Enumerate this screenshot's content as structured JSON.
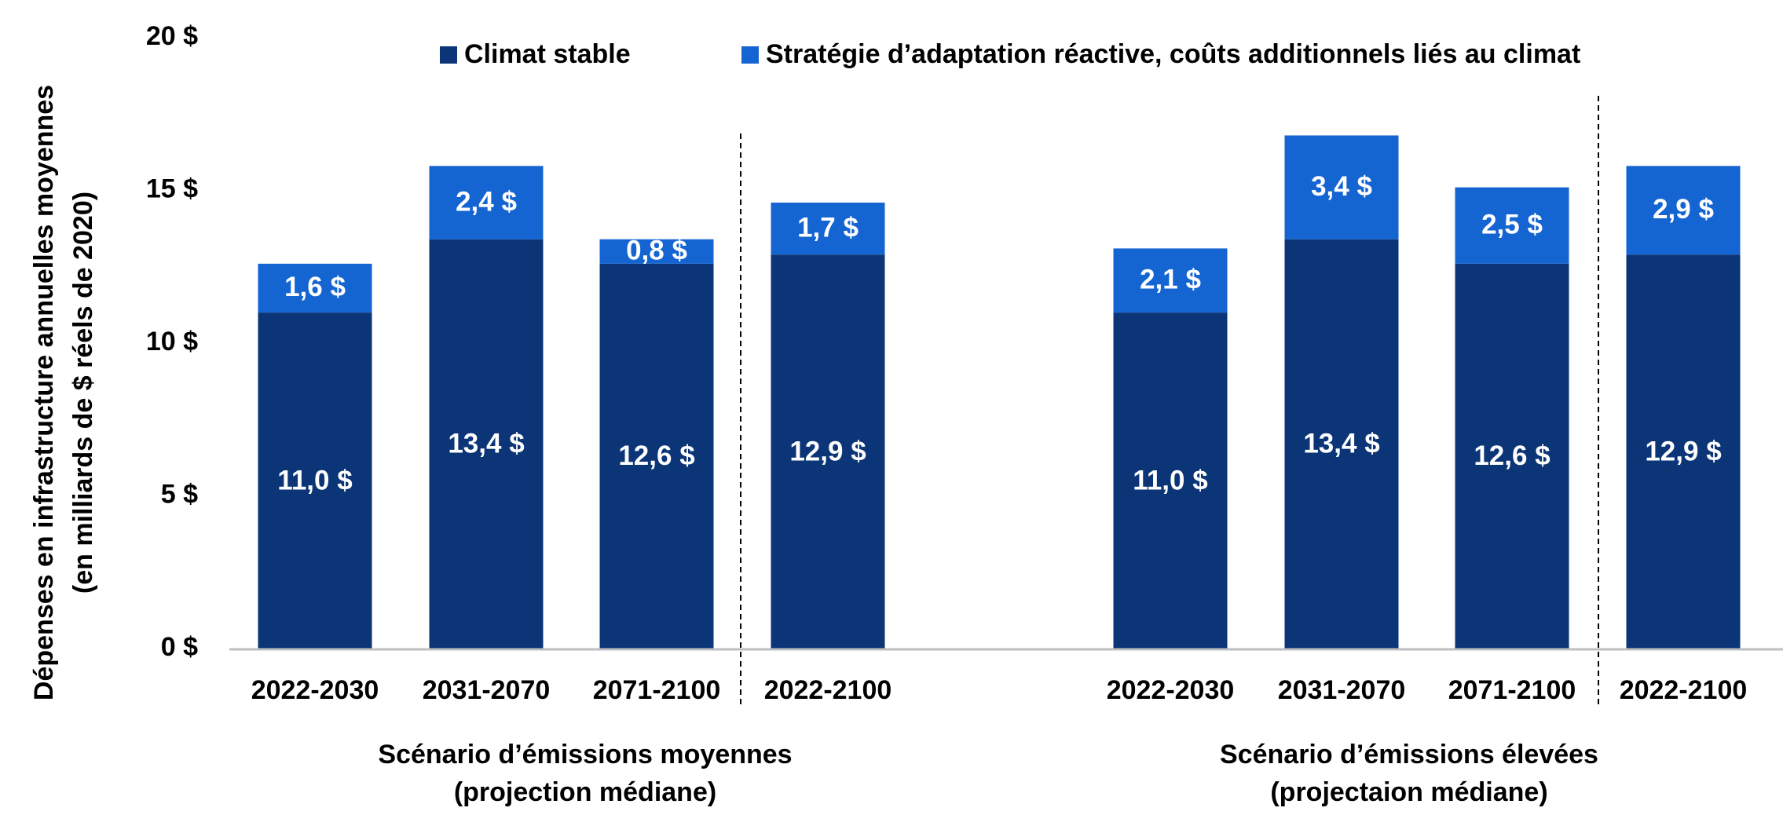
{
  "chart_data": {
    "type": "bar",
    "stacked": true,
    "ylabel_lines": [
      "Dépenses en infrastructure annuelles moyennes",
      "(en milliards de $ réels de 2020)"
    ],
    "ylim": [
      0,
      20
    ],
    "yticks": [
      {
        "value": 0,
        "label": "0 $"
      },
      {
        "value": 5,
        "label": "5 $"
      },
      {
        "value": 10,
        "label": "10 $"
      },
      {
        "value": 15,
        "label": "15 $"
      },
      {
        "value": 20,
        "label": "20 $"
      }
    ],
    "legend_position": "top",
    "colors": {
      "stable": "#0B3577",
      "adaptation": "#1464D2",
      "axis": "#BFBFBF",
      "separator": "#000000"
    },
    "series": [
      {
        "key": "stable",
        "name": "Climat stable"
      },
      {
        "key": "adaptation",
        "name": "Stratégie d’adaptation réactive, coûts additionnels liés au climat"
      }
    ],
    "groups": [
      {
        "label_lines": [
          "Scénario d’émissions moyennes",
          "(projection médiane)"
        ],
        "bars": [
          {
            "category": "2022-2030",
            "stable": 11.0,
            "adaptation": 1.6,
            "stable_label": "11,0 $",
            "adaptation_label": "1,6 $"
          },
          {
            "category": "2031-2070",
            "stable": 13.4,
            "adaptation": 2.4,
            "stable_label": "13,4 $",
            "adaptation_label": "2,4 $"
          },
          {
            "category": "2071-2100",
            "stable": 12.6,
            "adaptation": 0.8,
            "stable_label": "12,6 $",
            "adaptation_label": "0,8 $"
          },
          {
            "category": "2022-2100",
            "stable": 12.9,
            "adaptation": 1.7,
            "stable_label": "12,9 $",
            "adaptation_label": "1,7 $"
          }
        ]
      },
      {
        "label_lines": [
          "Scénario d’émissions élevées",
          "(projectaion médiane)"
        ],
        "bars": [
          {
            "category": "2022-2030",
            "stable": 11.0,
            "adaptation": 2.1,
            "stable_label": "11,0 $",
            "adaptation_label": "2,1 $"
          },
          {
            "category": "2031-2070",
            "stable": 13.4,
            "adaptation": 3.4,
            "stable_label": "13,4 $",
            "adaptation_label": "3,4 $"
          },
          {
            "category": "2071-2100",
            "stable": 12.6,
            "adaptation": 2.5,
            "stable_label": "12,6 $",
            "adaptation_label": "2,5 $"
          },
          {
            "category": "2022-2100",
            "stable": 12.9,
            "adaptation": 2.9,
            "stable_label": "12,9 $",
            "adaptation_label": "2,9 $"
          }
        ]
      }
    ]
  }
}
